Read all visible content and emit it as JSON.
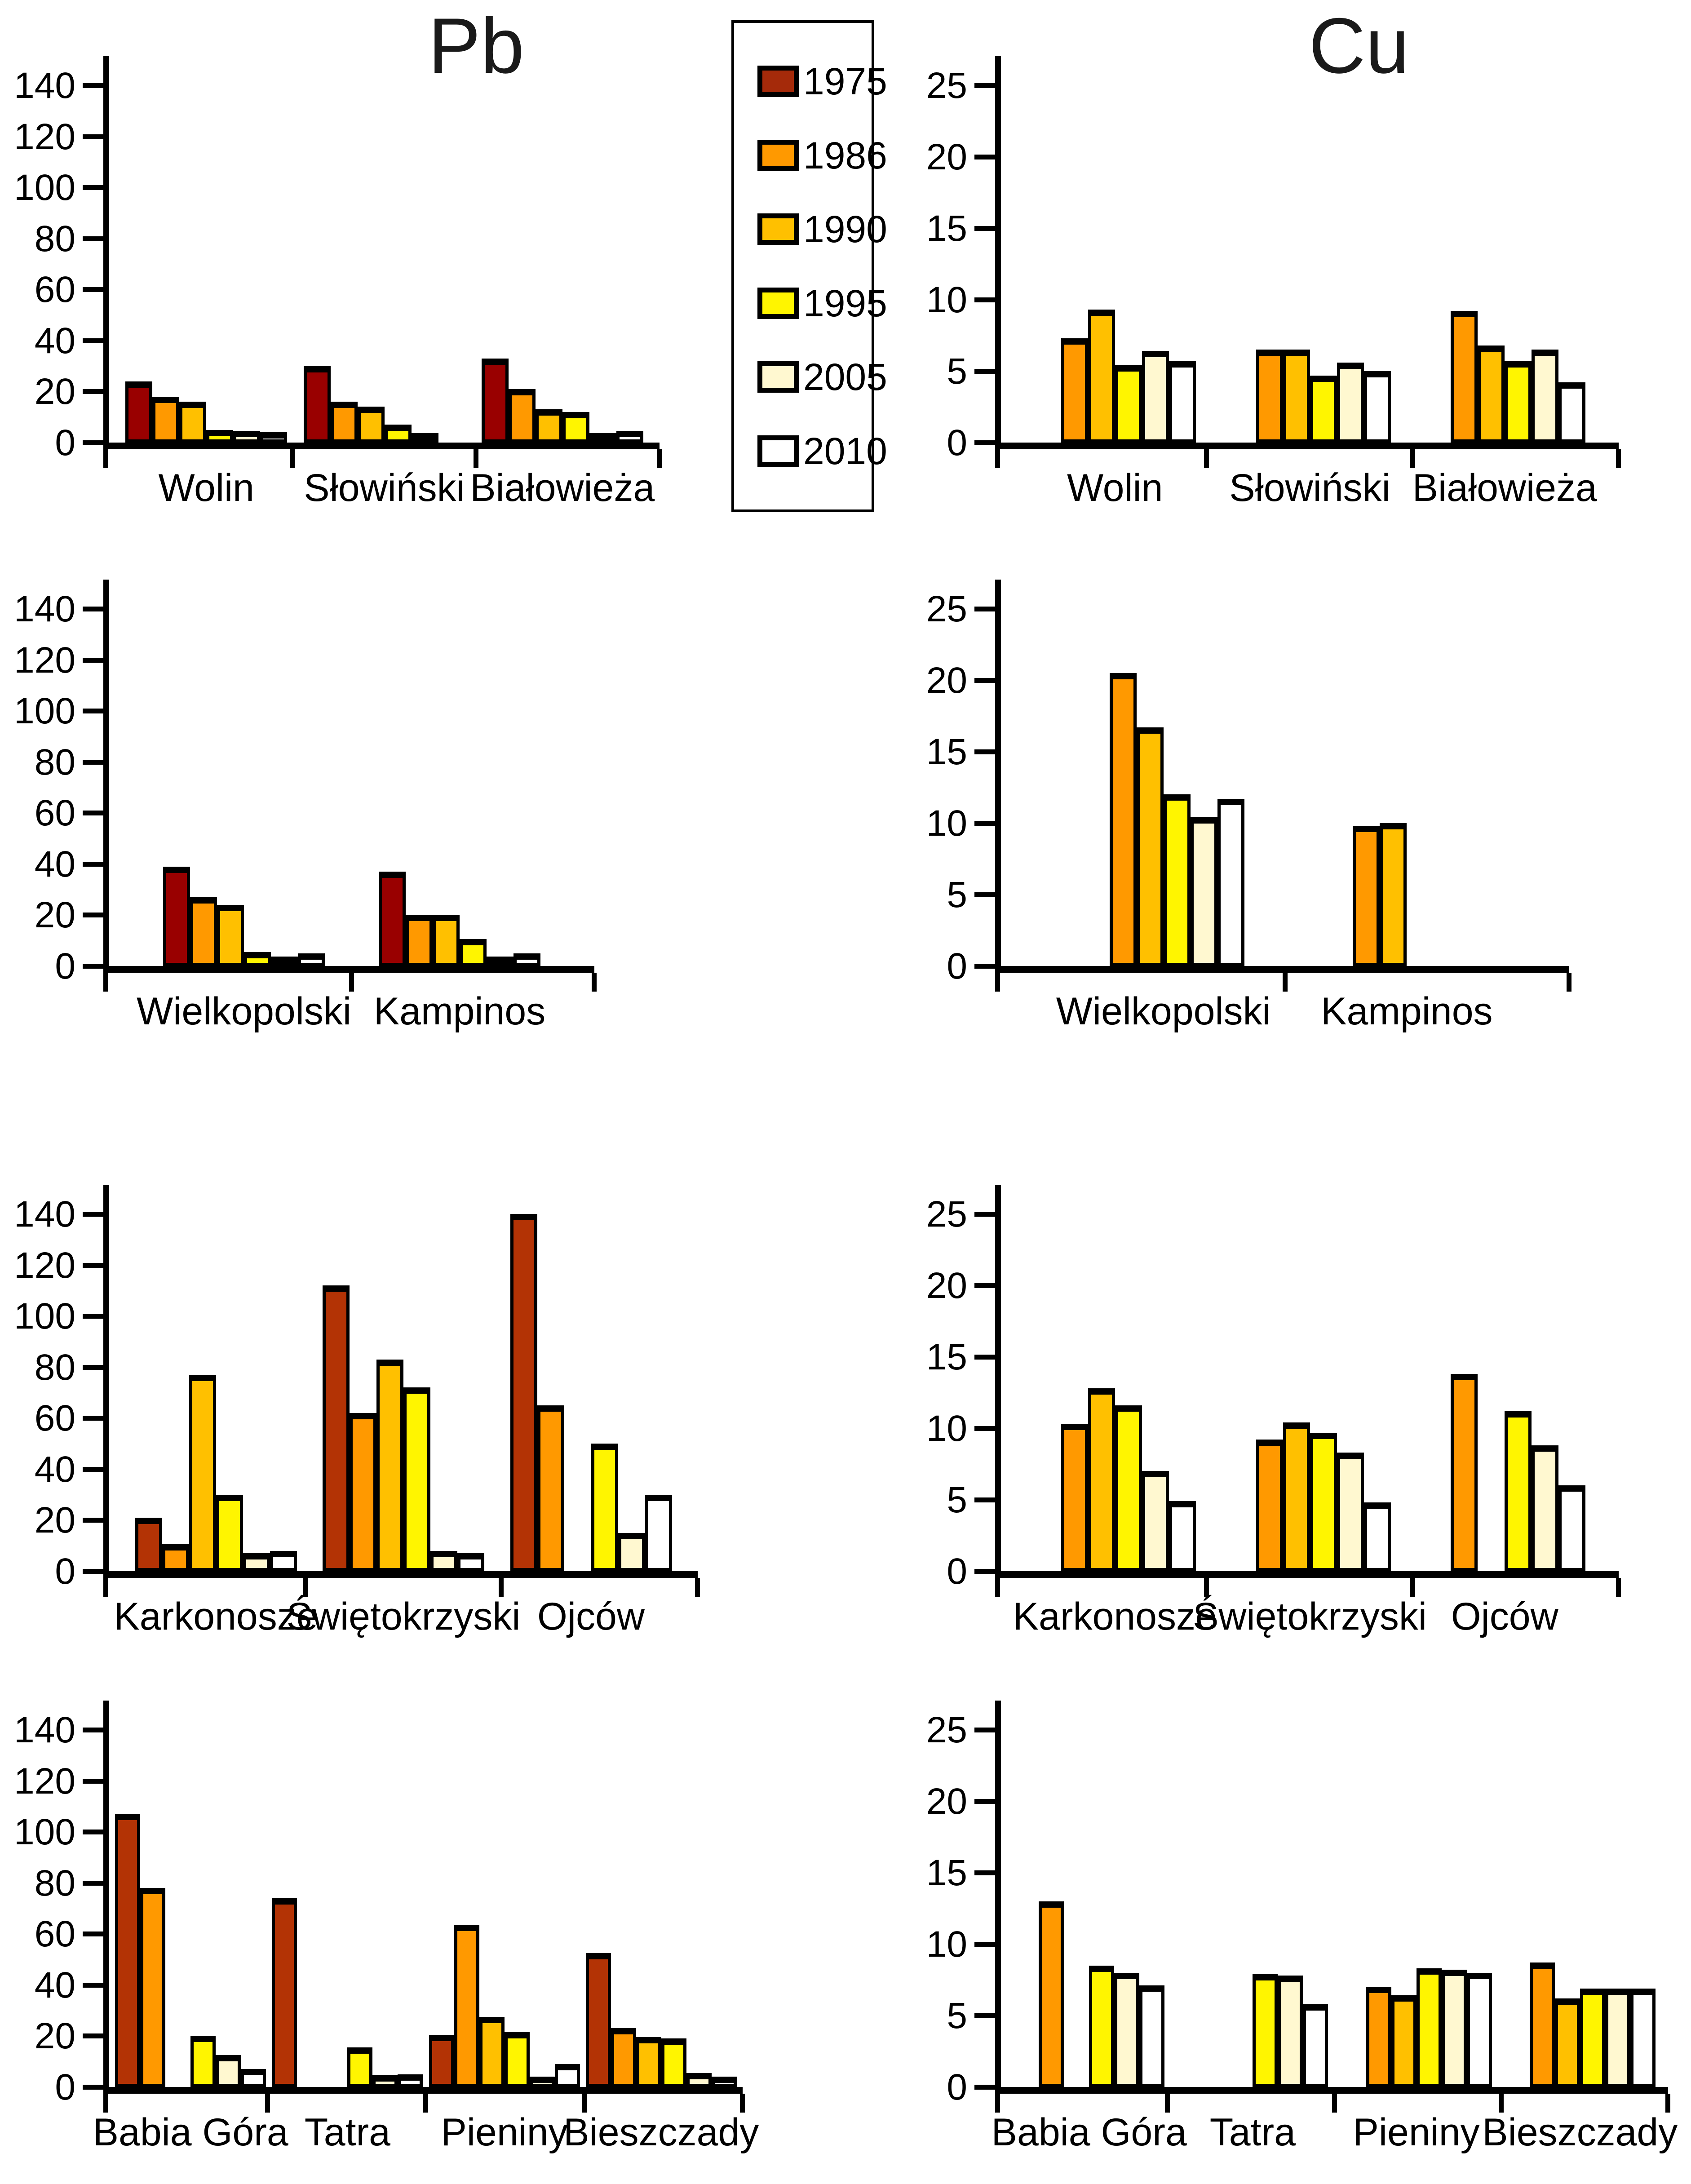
{
  "titles": {
    "left": "Pb",
    "right": "Cu"
  },
  "legend": {
    "items": [
      {
        "year": "1975",
        "color": "#A52A0A"
      },
      {
        "year": "1986",
        "color": "#FF9900"
      },
      {
        "year": "1990",
        "color": "#FFC000"
      },
      {
        "year": "1995",
        "color": "#FFF500"
      },
      {
        "year": "2005",
        "color": "#FFF8D0"
      },
      {
        "year": "2010",
        "color": "#FFFFFF"
      }
    ]
  },
  "palette": {
    "1975_dark": "#990000",
    "1975_rust": "#B33305",
    "1986": "#FF9900",
    "1990": "#FFC000",
    "1995": "#FFF500",
    "2005": "#FFF8D0",
    "2010": "#FFFFFF",
    "outline": "#000000"
  },
  "series_years": [
    "1975",
    "1986",
    "1990",
    "1995",
    "2005",
    "2010"
  ],
  "chart_data": [
    {
      "id": "pb1",
      "type": "bar",
      "element": "Pb",
      "row": 1,
      "ylim": [
        0,
        140
      ],
      "yticks": [
        140,
        120,
        100,
        80,
        60,
        40,
        20,
        0
      ],
      "grid": false,
      "color_1975": "dark",
      "categories": [
        "Wolin",
        "Słowiński",
        "Białowieża"
      ],
      "series": [
        {
          "name": "1975",
          "values": [
            24,
            30,
            33
          ]
        },
        {
          "name": "1986",
          "values": [
            18,
            16,
            21
          ]
        },
        {
          "name": "1990",
          "values": [
            16,
            14,
            13
          ]
        },
        {
          "name": "1995",
          "values": [
            5,
            7,
            12
          ]
        },
        {
          "name": "2005",
          "values": [
            4.5,
            3,
            1.5
          ]
        },
        {
          "name": "2010",
          "values": [
            4,
            null,
            4.5
          ]
        }
      ]
    },
    {
      "id": "cu1",
      "type": "bar",
      "element": "Cu",
      "row": 1,
      "ylim": [
        0,
        25
      ],
      "yticks": [
        25,
        20,
        15,
        10,
        5,
        0
      ],
      "grid": false,
      "color_1975": "dark",
      "categories": [
        "Wolin",
        "Słowiński",
        "Białowieża"
      ],
      "series": [
        {
          "name": "1975",
          "values": [
            null,
            null,
            null
          ]
        },
        {
          "name": "1986",
          "values": [
            7.3,
            6.5,
            9.2
          ]
        },
        {
          "name": "1990",
          "values": [
            9.3,
            6.5,
            6.8
          ]
        },
        {
          "name": "1995",
          "values": [
            5.4,
            4.7,
            5.7
          ]
        },
        {
          "name": "2005",
          "values": [
            6.4,
            5.6,
            6.5
          ]
        },
        {
          "name": "2010",
          "values": [
            5.7,
            5.0,
            4.2
          ]
        }
      ]
    },
    {
      "id": "pb2",
      "type": "bar",
      "element": "Pb",
      "row": 2,
      "ylim": [
        0,
        140
      ],
      "yticks": [
        140,
        120,
        100,
        80,
        60,
        40,
        20,
        0
      ],
      "grid": false,
      "color_1975": "dark",
      "categories": [
        "Wielkopolski",
        "Kampinos"
      ],
      "series": [
        {
          "name": "1975",
          "values": [
            39,
            37
          ]
        },
        {
          "name": "1986",
          "values": [
            27,
            20
          ]
        },
        {
          "name": "1990",
          "values": [
            24,
            20
          ]
        },
        {
          "name": "1995",
          "values": [
            5.5,
            10.5
          ]
        },
        {
          "name": "2005",
          "values": [
            3,
            2.5
          ]
        },
        {
          "name": "2010",
          "values": [
            5,
            5
          ]
        }
      ]
    },
    {
      "id": "cu2",
      "type": "bar",
      "element": "Cu",
      "row": 2,
      "ylim": [
        0,
        25
      ],
      "yticks": [
        25,
        20,
        15,
        10,
        5,
        0
      ],
      "grid": false,
      "color_1975": "dark",
      "categories": [
        "Wielkopolski",
        "Kampinos"
      ],
      "series": [
        {
          "name": "1975",
          "values": [
            null,
            null
          ]
        },
        {
          "name": "1986",
          "values": [
            20.5,
            9.8
          ]
        },
        {
          "name": "1990",
          "values": [
            16.7,
            10.0
          ]
        },
        {
          "name": "1995",
          "values": [
            12.0,
            null
          ]
        },
        {
          "name": "2005",
          "values": [
            10.4,
            null
          ]
        },
        {
          "name": "2010",
          "values": [
            11.7,
            null
          ]
        }
      ]
    },
    {
      "id": "pb3",
      "type": "bar",
      "element": "Pb",
      "row": 3,
      "ylim": [
        0,
        140
      ],
      "yticks": [
        140,
        120,
        100,
        80,
        60,
        40,
        20,
        0
      ],
      "grid": false,
      "color_1975": "rust",
      "categories": [
        "Karkonosze",
        "Świętokrzyski",
        "Ojców"
      ],
      "series": [
        {
          "name": "1975",
          "values": [
            21,
            112,
            140
          ]
        },
        {
          "name": "1986",
          "values": [
            10.5,
            62,
            65
          ]
        },
        {
          "name": "1990",
          "values": [
            77,
            83,
            null
          ]
        },
        {
          "name": "1995",
          "values": [
            30,
            72,
            50
          ]
        },
        {
          "name": "2005",
          "values": [
            7,
            8,
            15
          ]
        },
        {
          "name": "2010",
          "values": [
            8,
            7,
            30
          ]
        }
      ]
    },
    {
      "id": "cu3",
      "type": "bar",
      "element": "Cu",
      "row": 3,
      "ylim": [
        0,
        25
      ],
      "yticks": [
        25,
        20,
        15,
        10,
        5,
        0
      ],
      "grid": false,
      "color_1975": "rust",
      "categories": [
        "Karkonosze",
        "Świętokrzyski",
        "Ojców"
      ],
      "series": [
        {
          "name": "1975",
          "values": [
            null,
            null,
            null
          ]
        },
        {
          "name": "1986",
          "values": [
            10.3,
            9.2,
            13.8
          ]
        },
        {
          "name": "1990",
          "values": [
            12.8,
            10.4,
            null
          ]
        },
        {
          "name": "1995",
          "values": [
            11.6,
            9.7,
            11.2
          ]
        },
        {
          "name": "2005",
          "values": [
            7.0,
            8.3,
            8.8
          ]
        },
        {
          "name": "2010",
          "values": [
            4.9,
            4.8,
            6.0
          ]
        }
      ]
    },
    {
      "id": "pb4",
      "type": "bar",
      "element": "Pb",
      "row": 4,
      "ylim": [
        0,
        140
      ],
      "yticks": [
        140,
        120,
        100,
        80,
        60,
        40,
        20,
        0
      ],
      "grid": false,
      "color_1975": "rust",
      "categories": [
        "Babia Góra",
        "Tatra",
        "Pieniny",
        "Bieszczady"
      ],
      "series": [
        {
          "name": "1975",
          "values": [
            107,
            74,
            20.5,
            52.5
          ]
        },
        {
          "name": "1986",
          "values": [
            78,
            null,
            63.5,
            23
          ]
        },
        {
          "name": "1990",
          "values": [
            null,
            null,
            27.5,
            19.5
          ]
        },
        {
          "name": "1995",
          "values": [
            20,
            15.5,
            21.5,
            19
          ]
        },
        {
          "name": "2005",
          "values": [
            12.5,
            4.5,
            4,
            5.5
          ]
        },
        {
          "name": "2010",
          "values": [
            7,
            5,
            9,
            4
          ]
        }
      ]
    },
    {
      "id": "cu4",
      "type": "bar",
      "element": "Cu",
      "row": 4,
      "ylim": [
        0,
        25
      ],
      "yticks": [
        25,
        20,
        15,
        10,
        5,
        0
      ],
      "grid": false,
      "color_1975": "rust",
      "categories": [
        "Babia Góra",
        "Tatra",
        "Pieniny",
        "Bieszczady"
      ],
      "series": [
        {
          "name": "1975",
          "values": [
            null,
            null,
            null,
            null
          ]
        },
        {
          "name": "1986",
          "values": [
            13.0,
            null,
            7.0,
            8.7
          ]
        },
        {
          "name": "1990",
          "values": [
            null,
            null,
            6.4,
            6.2
          ]
        },
        {
          "name": "1995",
          "values": [
            8.5,
            7.9,
            8.3,
            6.9
          ]
        },
        {
          "name": "2005",
          "values": [
            8.0,
            7.8,
            8.2,
            6.9
          ]
        },
        {
          "name": "2010",
          "values": [
            7.1,
            5.8,
            8.0,
            6.9
          ]
        }
      ]
    }
  ]
}
